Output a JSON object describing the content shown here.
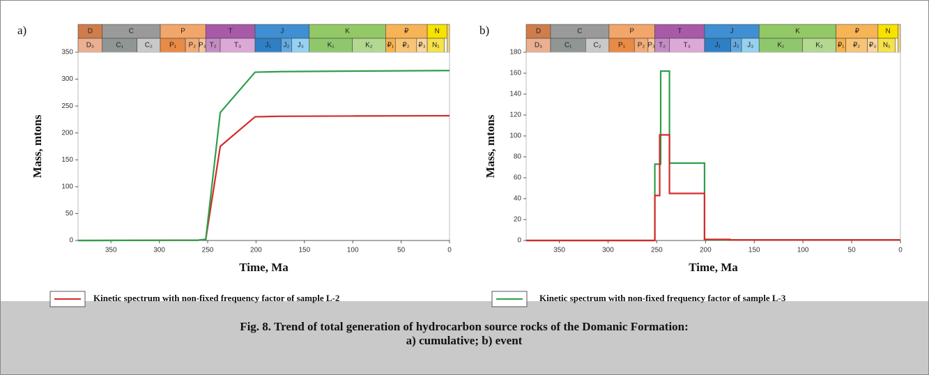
{
  "chart_data": [
    {
      "type": "line",
      "panel": "a)",
      "ylabel": "Mass, mtons",
      "xlabel": "Time, Ma",
      "xlim": [
        384,
        0
      ],
      "xticks": [
        350,
        300,
        250,
        200,
        150,
        100,
        50,
        0
      ],
      "ylim": [
        0,
        350
      ],
      "yticks": [
        0,
        50,
        100,
        150,
        200,
        250,
        300,
        350
      ],
      "series": [
        {
          "name": "Kinetic spectrum with non-fixed frequency factor of sample L-2",
          "color": "#d42a2a",
          "x": [
            384,
            260,
            252,
            237,
            201,
            175,
            100,
            0
          ],
          "values": [
            0,
            0.5,
            2,
            175,
            230,
            231,
            231.5,
            232
          ]
        },
        {
          "name": "Kinetic spectrum with non-fixed frequency factor of sample L-3",
          "color": "#2e9e4a",
          "x": [
            384,
            260,
            252,
            237,
            201,
            175,
            100,
            0
          ],
          "values": [
            0,
            0.5,
            2,
            238,
            313,
            314,
            315,
            316
          ]
        }
      ]
    },
    {
      "type": "line",
      "panel": "b)",
      "ylabel": "Mass, mtons",
      "xlabel": "Time, Ma",
      "xlim": [
        384,
        0
      ],
      "xticks": [
        350,
        300,
        250,
        200,
        150,
        100,
        50,
        0
      ],
      "ylim": [
        0,
        180
      ],
      "yticks": [
        0,
        20,
        40,
        60,
        80,
        100,
        120,
        140,
        160,
        180
      ],
      "series": [
        {
          "name": "Kinetic spectrum with non-fixed frequency factor of sample L-3",
          "color": "#2e9e4a",
          "x": [
            384,
            252,
            252,
            246,
            246,
            237,
            237,
            201,
            201,
            0
          ],
          "values": [
            0,
            0,
            73,
            73,
            162,
            162,
            74,
            74,
            0.5,
            0.5
          ]
        },
        {
          "name": "Kinetic spectrum with non-fixed frequency factor of sample L-2",
          "color": "#d42a2a",
          "x": [
            384,
            252,
            252,
            247,
            247,
            237,
            237,
            201,
            201,
            175,
            175,
            0
          ],
          "values": [
            0,
            0,
            43,
            43,
            101,
            101,
            45,
            45,
            1,
            1,
            0.5,
            0.5
          ]
        }
      ]
    }
  ],
  "timescale": {
    "periods": [
      {
        "label": "D",
        "start": 384,
        "end": 359,
        "color": "#cf7d4d"
      },
      {
        "label": "C",
        "start": 359,
        "end": 299,
        "color": "#9a9a9a"
      },
      {
        "label": "P",
        "start": 299,
        "end": 252,
        "color": "#f2a66a"
      },
      {
        "label": "T",
        "start": 252,
        "end": 201,
        "color": "#a85aa8"
      },
      {
        "label": "J",
        "start": 201,
        "end": 145,
        "color": "#3f8fd2"
      },
      {
        "label": "K",
        "start": 145,
        "end": 66,
        "color": "#93c866"
      },
      {
        "label": "₽",
        "start": 66,
        "end": 23,
        "color": "#f6b456"
      },
      {
        "label": "N",
        "start": 23,
        "end": 2.6,
        "color": "#f7e200"
      }
    ],
    "epochs": [
      {
        "label": "D₃",
        "start": 384,
        "end": 359,
        "color": "#eab08f"
      },
      {
        "label": "C₁",
        "start": 359,
        "end": 323,
        "color": "#8f9694"
      },
      {
        "label": "C₂",
        "start": 323,
        "end": 299,
        "color": "#c9c9c9"
      },
      {
        "label": "P₁",
        "start": 299,
        "end": 273,
        "color": "#e98a45"
      },
      {
        "label": "P₂",
        "start": 273,
        "end": 259,
        "color": "#f2ab78"
      },
      {
        "label": "P₃",
        "start": 259,
        "end": 252,
        "color": "#f6c59a"
      },
      {
        "label": "T₂",
        "start": 252,
        "end": 237,
        "color": "#c48cc4"
      },
      {
        "label": "T₃",
        "start": 237,
        "end": 201,
        "color": "#dca8d6"
      },
      {
        "label": "J₁",
        "start": 201,
        "end": 174,
        "color": "#2f7fc6"
      },
      {
        "label": "J₂",
        "start": 174,
        "end": 163,
        "color": "#62abe2"
      },
      {
        "label": "J₃",
        "start": 163,
        "end": 145,
        "color": "#95d2f2"
      },
      {
        "label": "K₁",
        "start": 145,
        "end": 100.5,
        "color": "#8fc86c"
      },
      {
        "label": "K₂",
        "start": 100.5,
        "end": 66,
        "color": "#b2d98f"
      },
      {
        "label": "₽₁",
        "start": 66,
        "end": 56,
        "color": "#f8b24a"
      },
      {
        "label": "₽₂",
        "start": 56,
        "end": 34,
        "color": "#f9c476"
      },
      {
        "label": "₽₃",
        "start": 34,
        "end": 23,
        "color": "#fbd59e"
      },
      {
        "label": "N₁",
        "start": 23,
        "end": 5.3,
        "color": "#f6e24a"
      }
    ]
  },
  "caption": {
    "lines": [
      "Fig. 8. Trend of total generation of hydrocarbon source rocks of the Domanic Formation:",
      "a) cumulative; b) event"
    ]
  }
}
